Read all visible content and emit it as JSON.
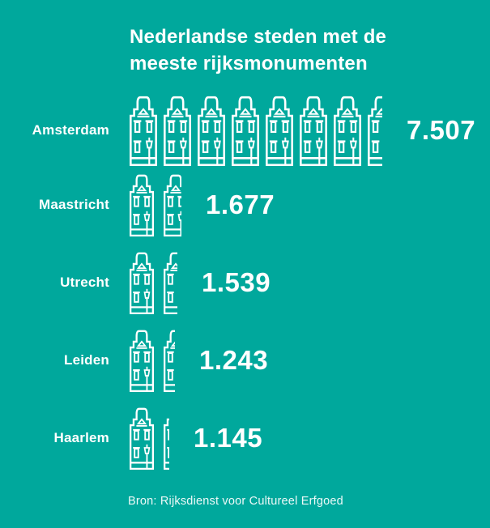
{
  "title": {
    "line1": "Nederlandse steden met de",
    "line2": "meeste rijksmonumenten"
  },
  "source": "Bron: Rijksdienst voor Cultureel Erfgoed",
  "colors": {
    "background": "#00A89C",
    "foreground": "#FFFFFF"
  },
  "chart_data": {
    "type": "pictogram-bar",
    "title": "Nederlandse steden met de meeste rijksmonumenten",
    "source": "Bron: Rijksdienst voor Cultureel Erfgoed",
    "icon": "canal-house",
    "unit_per_icon": 1000,
    "legend": "none",
    "categories": [
      "Amsterdam",
      "Maastricht",
      "Utrecht",
      "Leiden",
      "Haarlem"
    ],
    "values": [
      7507,
      1677,
      1539,
      1243,
      1145
    ],
    "rows": [
      {
        "city": "Amsterdam",
        "value": 7507,
        "value_label": "7.507",
        "icons_full": 7,
        "icon_fraction": 0.53
      },
      {
        "city": "Maastricht",
        "value": 1677,
        "value_label": "1.677",
        "icons_full": 1,
        "icon_fraction": 0.74
      },
      {
        "city": "Utrecht",
        "value": 1539,
        "value_label": "1.539",
        "icons_full": 1,
        "icon_fraction": 0.55
      },
      {
        "city": "Leiden",
        "value": 1243,
        "value_label": "1.243",
        "icons_full": 1,
        "icon_fraction": 0.48
      },
      {
        "city": "Haarlem",
        "value": 1145,
        "value_label": "1.145",
        "icons_full": 1,
        "icon_fraction": 0.22
      }
    ]
  }
}
